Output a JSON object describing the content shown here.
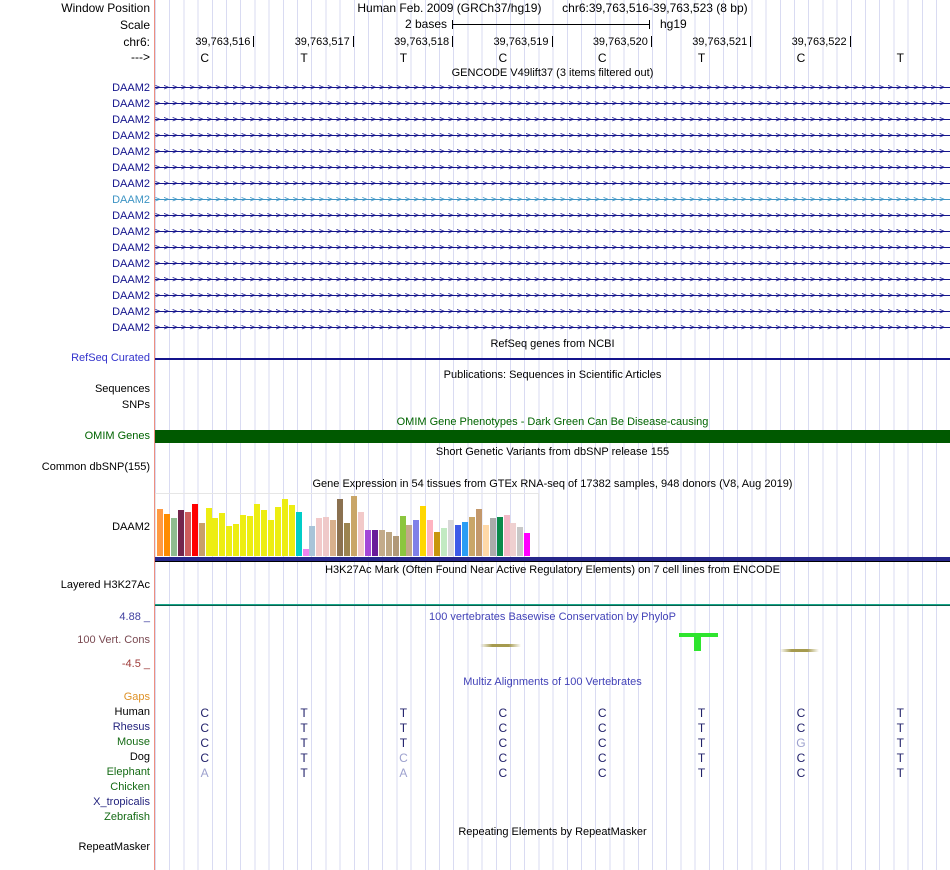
{
  "header": {
    "window_position_label": "Window Position",
    "assembly": "Human Feb. 2009 (GRCh37/hg19)",
    "position": "chr6:39,763,516-39,763,523 (8 bp)",
    "scale_label": "Scale",
    "scale_value": "2 bases",
    "scale_assembly": "hg19",
    "chrom_label": "chr6:",
    "strand_label": "--->",
    "coordinates": [
      "39,763,516",
      "39,763,517",
      "39,763,518",
      "39,763,519",
      "39,763,520",
      "39,763,521",
      "39,763,522"
    ],
    "bases": [
      "C",
      "T",
      "T",
      "C",
      "C",
      "T",
      "C",
      "T"
    ]
  },
  "gencode": {
    "title": "GENCODE V49lift37 (3 items filtered out)",
    "rows": [
      {
        "label": "DAAM2",
        "variant": "dark"
      },
      {
        "label": "DAAM2",
        "variant": "dark"
      },
      {
        "label": "DAAM2",
        "variant": "dark"
      },
      {
        "label": "DAAM2",
        "variant": "dark"
      },
      {
        "label": "DAAM2",
        "variant": "dark"
      },
      {
        "label": "DAAM2",
        "variant": "dark"
      },
      {
        "label": "DAAM2",
        "variant": "dark"
      },
      {
        "label": "DAAM2",
        "variant": "light"
      },
      {
        "label": "DAAM2",
        "variant": "dark"
      },
      {
        "label": "DAAM2",
        "variant": "dark"
      },
      {
        "label": "DAAM2",
        "variant": "dark"
      },
      {
        "label": "DAAM2",
        "variant": "dark"
      },
      {
        "label": "DAAM2",
        "variant": "dark"
      },
      {
        "label": "DAAM2",
        "variant": "dark"
      },
      {
        "label": "DAAM2",
        "variant": "dark"
      },
      {
        "label": "DAAM2",
        "variant": "dark"
      }
    ]
  },
  "refseq": {
    "title": "RefSeq genes from NCBI",
    "label": "RefSeq Curated"
  },
  "publications": {
    "title": "Publications: Sequences in Scientific Articles",
    "sequences_label": "Sequences",
    "snps_label": "SNPs"
  },
  "omim": {
    "title": "OMIM Gene Phenotypes - Dark Green Can Be Disease-causing",
    "label": "OMIM Genes"
  },
  "dbsnp": {
    "title": "Short Genetic Variants from dbSNP release 155",
    "label": "Common dbSNP(155)"
  },
  "gtex": {
    "title": "Gene Expression in 54 tissues from GTEx RNA-seq of 17382 samples, 948 donors (V8, Aug 2019)",
    "label": "DAAM2",
    "chart_data": {
      "type": "bar",
      "title": "Gene Expression in 54 tissues from GTEx RNA-seq of 17382 samples, 948 donors (V8, Aug 2019)",
      "gene": "DAAM2",
      "n_tissues": 54,
      "values": [
        47,
        42,
        38,
        46,
        44,
        52,
        33,
        48,
        38,
        43,
        30,
        32,
        41,
        40,
        52,
        46,
        36,
        49,
        57,
        51,
        44,
        7,
        30,
        38,
        39,
        36,
        57,
        33,
        60,
        44,
        26,
        26,
        26,
        24,
        20,
        40,
        31,
        36,
        50,
        36,
        24,
        28,
        36,
        31,
        34,
        39,
        47,
        31,
        38,
        39,
        41,
        33,
        29,
        23
      ],
      "colors": [
        "#FF9A42",
        "#FF8C00",
        "#8FBC8F",
        "#73264D",
        "#CD5C5C",
        "#FF0000",
        "#C8A06A",
        "#EDED12",
        "#EDED12",
        "#EDED12",
        "#EDED12",
        "#EDED12",
        "#EDED12",
        "#EDED12",
        "#EDED12",
        "#EDED12",
        "#EDED12",
        "#EDED12",
        "#EDED12",
        "#EDED12",
        "#00CDC8",
        "#EE82EE",
        "#A8C4D8",
        "#F2C9C9",
        "#EFC9C9",
        "#D8B08C",
        "#8B7150",
        "#9C8450",
        "#C9A668",
        "#F2C9C9",
        "#A346D8",
        "#6A1B9A",
        "#C3AB8A",
        "#BCA582",
        "#B09878",
        "#8CC63E",
        "#C3A888",
        "#8080E8",
        "#FFD700",
        "#FFB3C0",
        "#C8960C",
        "#C2EAC2",
        "#D8D8D8",
        "#3C5AE8",
        "#2A9DF4",
        "#C9A668",
        "#C3986B",
        "#FFD9A8",
        "#ABABAB",
        "#0A8A4A",
        "#F2B8C6",
        "#EFD0D0",
        "#C8C8C8",
        "#FF00FF"
      ],
      "ylim": [
        0,
        60
      ],
      "grid": false
    }
  },
  "h3k27ac": {
    "title": "H3K27Ac Mark (Often Found Near Active Regulatory Elements) on 7 cell lines from ENCODE",
    "label": "Layered H3K27Ac"
  },
  "conservation": {
    "title": "100 vertebrates Basewise Conservation by PhyloP",
    "label": "100 Vert. Cons",
    "max_label": "4.88 _",
    "min_label": "-4.5 _",
    "marks": [
      {
        "kind": "dash",
        "base": 3
      },
      {
        "kind": "positive-bar",
        "base": 5
      },
      {
        "kind": "dash",
        "base": 6
      }
    ]
  },
  "multiz": {
    "title": "Multiz Alignments of 100 Vertebrates",
    "rows": [
      {
        "label": "Gaps",
        "color": "orange",
        "bases": [
          "",
          "",
          "",
          "",
          "",
          "",
          "",
          ""
        ],
        "light": []
      },
      {
        "label": "Human",
        "color": "black",
        "bases": [
          "C",
          "T",
          "T",
          "C",
          "C",
          "T",
          "C",
          "T"
        ],
        "light": []
      },
      {
        "label": "Rhesus",
        "color": "navy",
        "bases": [
          "C",
          "T",
          "T",
          "C",
          "C",
          "T",
          "C",
          "T"
        ],
        "light": []
      },
      {
        "label": "Mouse",
        "color": "grn",
        "bases": [
          "C",
          "T",
          "T",
          "C",
          "C",
          "T",
          "G",
          "T"
        ],
        "light": [
          6
        ]
      },
      {
        "label": "Dog",
        "color": "black",
        "bases": [
          "C",
          "T",
          "C",
          "C",
          "C",
          "T",
          "C",
          "T"
        ],
        "light": [
          2
        ]
      },
      {
        "label": "Elephant",
        "color": "grn",
        "bases": [
          "A",
          "T",
          "A",
          "C",
          "C",
          "T",
          "C",
          "T"
        ],
        "light": [
          0,
          2
        ]
      },
      {
        "label": "Chicken",
        "color": "grn",
        "bases": [
          "",
          "",
          "",
          "",
          "",
          "",
          "",
          ""
        ],
        "light": []
      },
      {
        "label": "X_tropicalis",
        "color": "navy",
        "bases": [
          "",
          "",
          "",
          "",
          "",
          "",
          "",
          ""
        ],
        "light": []
      },
      {
        "label": "Zebrafish",
        "color": "grn",
        "bases": [
          "",
          "",
          "",
          "",
          "",
          "",
          "",
          ""
        ],
        "light": []
      }
    ]
  },
  "repeatmasker": {
    "title": "Repeating Elements by RepeatMasker",
    "label": "RepeatMasker"
  },
  "colors": {
    "accent_navy": "#14148c",
    "title_blue": "#3333cc",
    "omim_green": "#005900",
    "h3k27ac_teal": "#17a689",
    "conservation_positive": "#2ee52e",
    "conservation_neutral": "#a59a4e",
    "guideline": "#d9dbf2",
    "separator_pink": "#ee8f80",
    "light_transcript_blue": "#3d94c4"
  }
}
